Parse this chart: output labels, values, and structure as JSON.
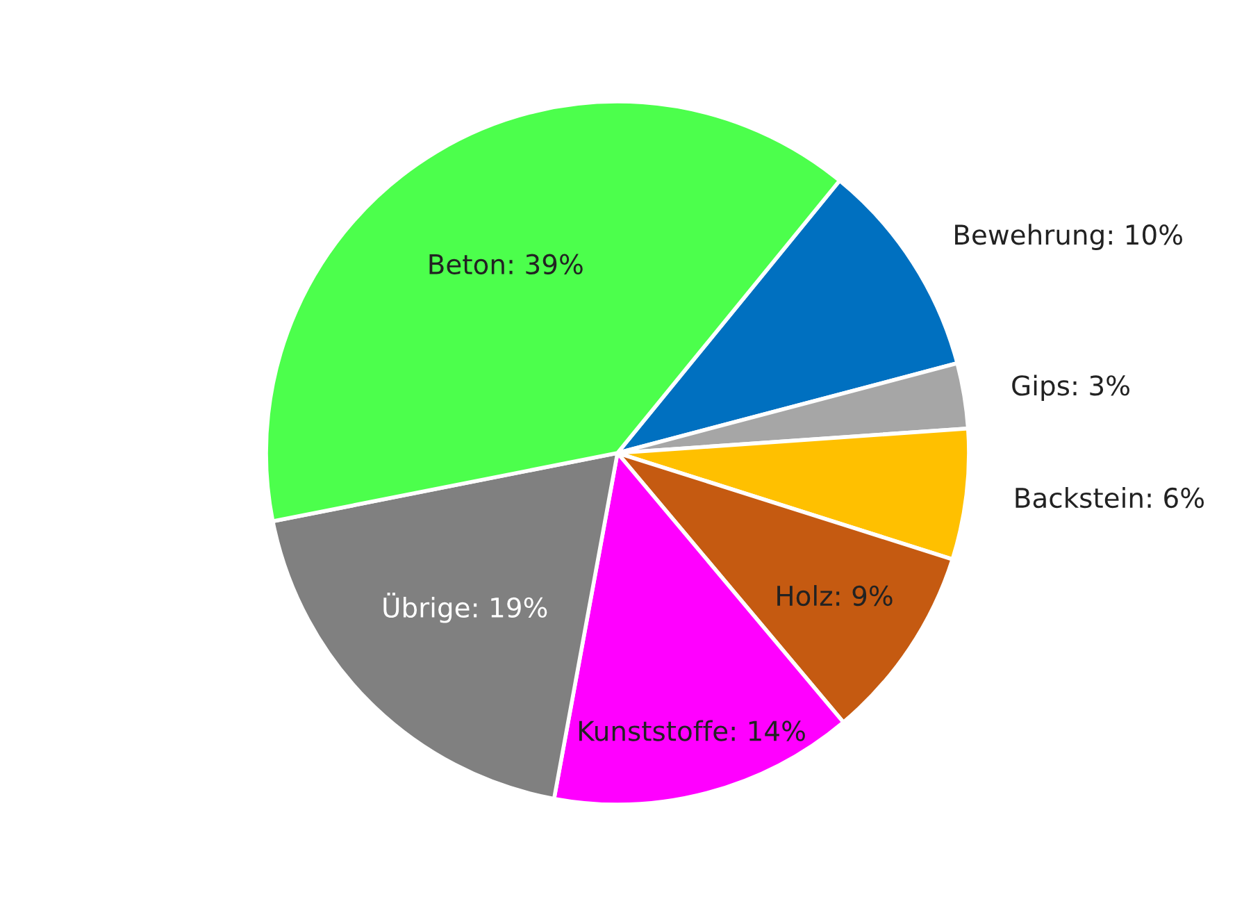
{
  "chart_data": {
    "type": "pie",
    "categories": [
      "Bewehrung: 10%",
      "Gips: 3%",
      "Backstein: 6%",
      "Holz: 9%",
      "Kunststoffe: 14%",
      "Übrige: 19%",
      "Beton: 39%"
    ],
    "values": [
      10,
      3,
      6,
      9,
      14,
      19,
      39
    ],
    "colors": [
      "#0070c0",
      "#a6a6a6",
      "#ffc000",
      "#c55a11",
      "#ff00ff",
      "#808080",
      "#4cff4c"
    ]
  }
}
